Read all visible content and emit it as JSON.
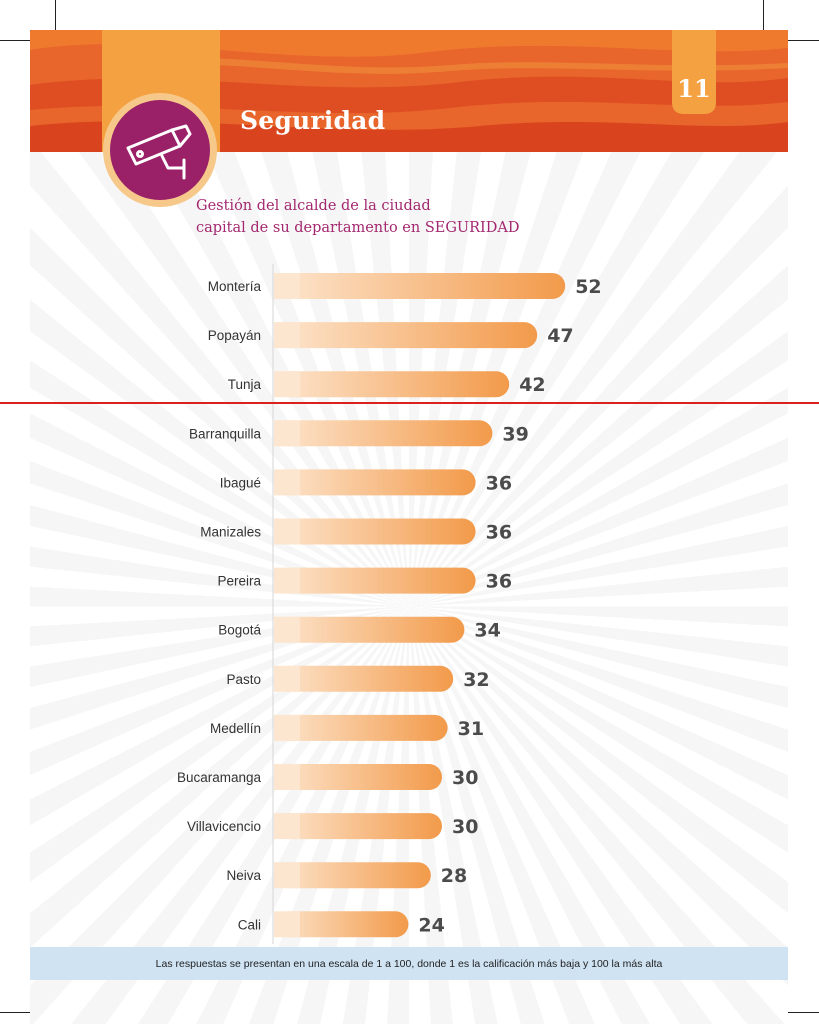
{
  "header": {
    "section_title": "Seguridad",
    "page_number": "11",
    "icon": "security-camera-icon"
  },
  "colors": {
    "banner_orange": "#e8652b",
    "banner_red": "#d9441e",
    "icon_purple": "#9a2068",
    "icon_ring": "#f6c889",
    "title_purple": "#a3286f",
    "bar_light": "#fde6cf",
    "bar_dark": "#f29a4a",
    "value_text": "#4b4b4b"
  },
  "chart_data": {
    "type": "bar",
    "orientation": "horizontal",
    "title_lines": [
      "Gestión del alcalde de la ciudad",
      "capital de su departamento en SEGURIDAD"
    ],
    "categories": [
      "Montería",
      "Popayán",
      "Tunja",
      "Barranquilla",
      "Ibagué",
      "Manizales",
      "Pereira",
      "Bogotá",
      "Pasto",
      "Medellín",
      "Bucaramanga",
      "Villavicencio",
      "Neiva",
      "Cali"
    ],
    "values": [
      52,
      47,
      42,
      39,
      36,
      36,
      36,
      34,
      32,
      31,
      30,
      30,
      28,
      24
    ],
    "xlim": [
      0,
      100
    ],
    "grid": false,
    "legend": "none"
  },
  "footnote": "Las respuestas se presentan en una escala de 1 a 100, donde 1 es la calificación más baja y 100 la más alta"
}
